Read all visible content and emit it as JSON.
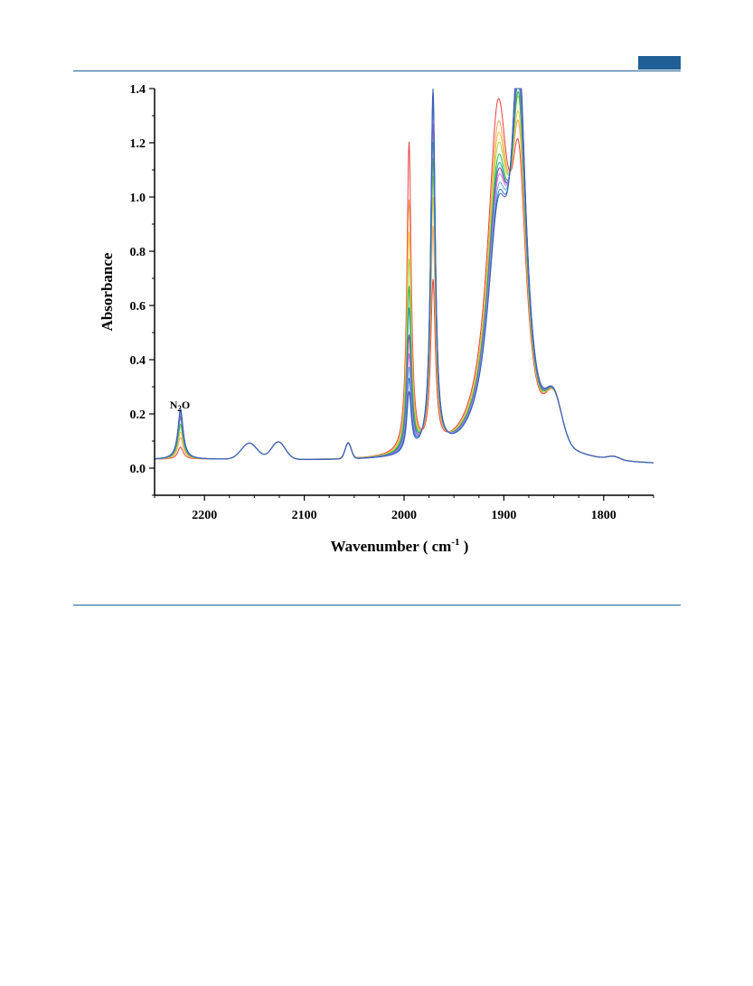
{
  "header": {
    "accent_color": "#1f5f95"
  },
  "chart_data": {
    "type": "line",
    "title": "",
    "xlabel": "Wavenumber ( cm",
    "xlabel_sup": "-1",
    "xlabel_close": " )",
    "ylabel": "Absorbance",
    "xlim": [
      2250,
      1750
    ],
    "ylim": [
      -0.1,
      1.4
    ],
    "x_reversed": true,
    "x_ticks": [
      2200,
      2100,
      2000,
      1900,
      1800
    ],
    "x_tick_labels": [
      "2200",
      "2100",
      "2000",
      "1900",
      "1800"
    ],
    "y_ticks": [
      0.0,
      0.2,
      0.4,
      0.6,
      0.8,
      1.0,
      1.2,
      1.4
    ],
    "y_tick_labels": [
      "0.0",
      "0.2",
      "0.4",
      "0.6",
      "0.8",
      "1.0",
      "1.2",
      "1.4"
    ],
    "grid": false,
    "legend": "none",
    "annotations": [
      {
        "text_main": "N",
        "text_sub": "2",
        "text_tail": "O",
        "x": 2224,
        "y": 0.22
      }
    ],
    "common_features": {
      "baseline_start": 0.03,
      "baseline_end": 0.008,
      "bands": [
        {
          "center": 2155,
          "height": 0.06,
          "width": 8
        },
        {
          "center": 2126,
          "height": 0.065,
          "width": 7
        },
        {
          "center": 2056,
          "height": 0.058,
          "width": 3
        },
        {
          "center": 1850,
          "height": 0.16,
          "width": 8
        },
        {
          "center": 1790,
          "height": 0.012,
          "width": 6
        }
      ]
    },
    "peak_positions": {
      "n2o": 2224,
      "band_a": 1995,
      "band_b": 1971,
      "band_c": 1906,
      "band_d": 1885
    },
    "series": [
      {
        "color": "#e8413c",
        "n2o": 0.045,
        "band_a": 1.145,
        "band_b": 0.61,
        "band_c": 1.21,
        "band_d": 0.85
      },
      {
        "color": "#f4a259",
        "n2o": 0.08,
        "band_a": 0.93,
        "band_b": 0.81,
        "band_c": 1.11,
        "band_d": 0.95
      },
      {
        "color": "#f2c94c",
        "n2o": 0.1,
        "band_a": 0.81,
        "band_b": 0.92,
        "band_c": 1.06,
        "band_d": 1.0
      },
      {
        "color": "#a7d94a",
        "n2o": 0.12,
        "band_a": 0.71,
        "band_b": 1.0,
        "band_c": 1.01,
        "band_d": 1.07
      },
      {
        "color": "#2fb84a",
        "n2o": 0.13,
        "band_a": 0.61,
        "band_b": 1.07,
        "band_c": 0.96,
        "band_d": 1.1
      },
      {
        "color": "#22a5a0",
        "n2o": 0.15,
        "band_a": 0.53,
        "band_b": 1.13,
        "band_c": 0.92,
        "band_d": 1.15
      },
      {
        "color": "#8e44ad",
        "n2o": 0.16,
        "band_a": 0.43,
        "band_b": 1.2,
        "band_c": 0.89,
        "band_d": 1.2
      },
      {
        "color": "#d071e0",
        "n2o": 0.17,
        "band_a": 0.36,
        "band_b": 1.26,
        "band_c": 0.86,
        "band_d": 1.24
      },
      {
        "color": "#5aa9e6",
        "n2o": 0.175,
        "band_a": 0.31,
        "band_b": 1.3,
        "band_c": 0.82,
        "band_d": 1.28
      },
      {
        "color": "#2e7bd0",
        "n2o": 0.18,
        "band_a": 0.27,
        "band_b": 1.32,
        "band_c": 0.79,
        "band_d": 1.3
      },
      {
        "color": "#3b5bb5",
        "n2o": 0.185,
        "band_a": 0.22,
        "band_b": 1.34,
        "band_c": 0.77,
        "band_d": 1.32
      }
    ]
  }
}
